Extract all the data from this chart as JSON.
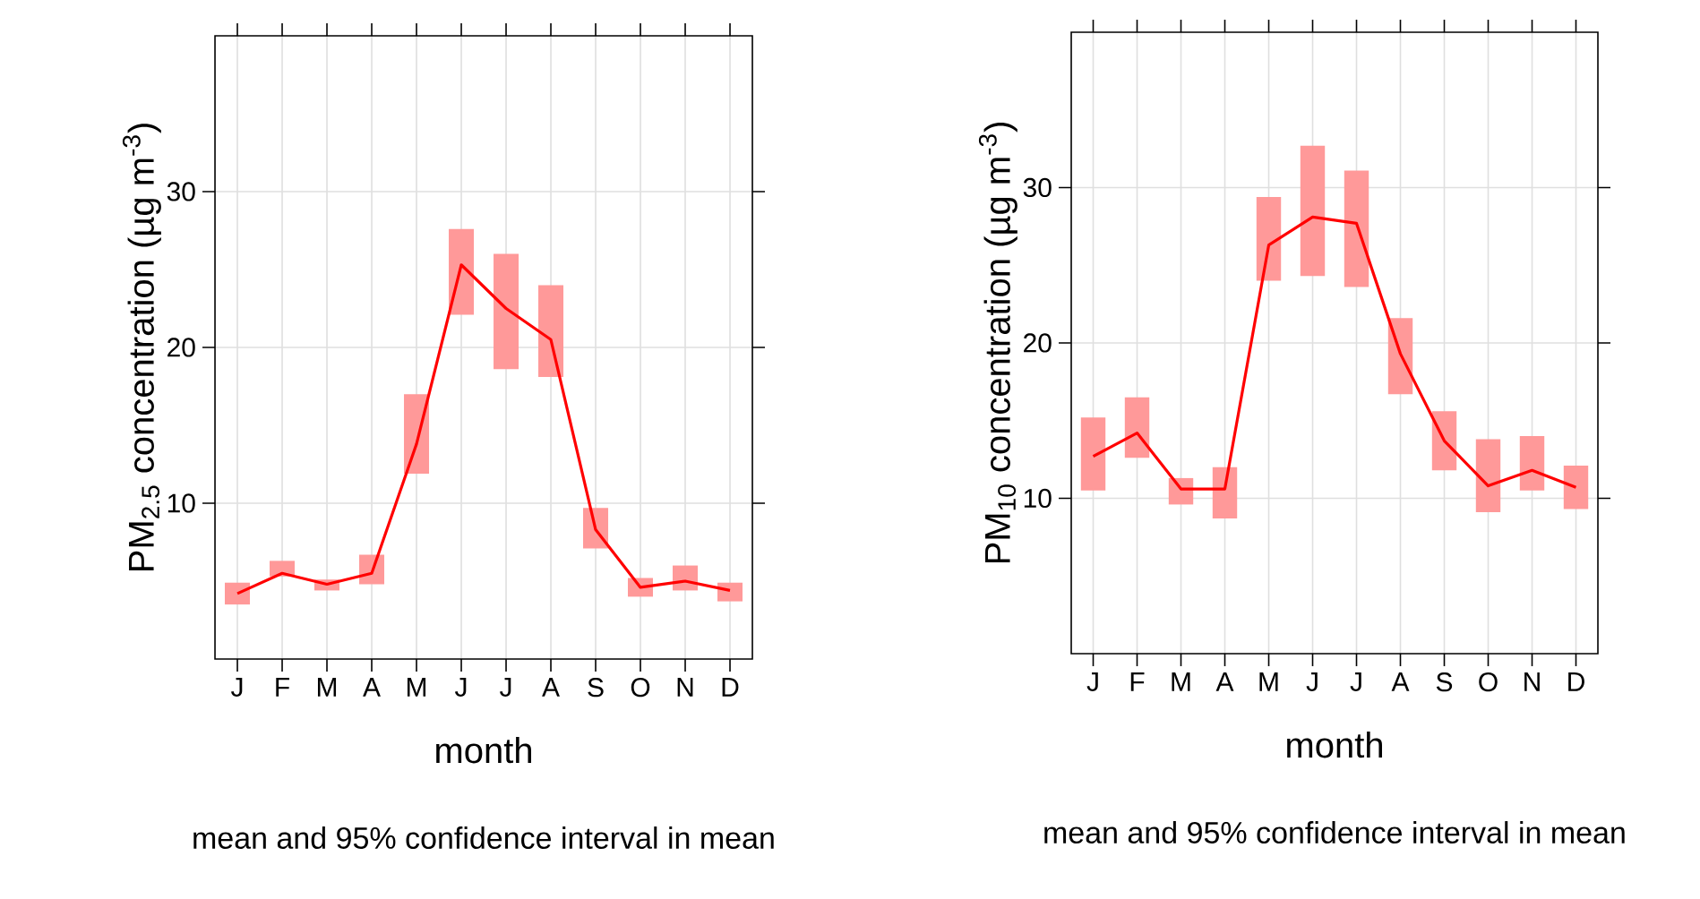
{
  "chart_data": [
    {
      "type": "line",
      "xlabel": "month",
      "ylabel": "PM$_{2.5}$ concentration (µg m$^{-3}$)",
      "categories": [
        "J",
        "F",
        "M",
        "A",
        "M",
        "J",
        "J",
        "A",
        "S",
        "O",
        "N",
        "D"
      ],
      "ylim": [
        0,
        40
      ],
      "yticks": [
        10,
        20,
        30
      ],
      "grid": true,
      "annotations": [
        "mean and 95% confidence interval in mean"
      ],
      "series": [
        {
          "color": "#ff0000",
          "values": [
            4.2,
            5.5,
            4.8,
            5.5,
            13.8,
            25.3,
            22.5,
            20.5,
            8.3,
            4.6,
            5.0,
            4.4
          ],
          "errors": [
            [
              3.5,
              4.9
            ],
            [
              5.3,
              6.3
            ],
            [
              4.4,
              5.1
            ],
            [
              4.8,
              6.7
            ],
            [
              11.9,
              17.0
            ],
            [
              22.1,
              27.6
            ],
            [
              18.6,
              26.0
            ],
            [
              18.1,
              24.0
            ],
            [
              7.1,
              9.7
            ],
            [
              4.0,
              5.2
            ],
            [
              4.4,
              6.0
            ],
            [
              3.7,
              4.9
            ]
          ]
        }
      ]
    },
    {
      "type": "line",
      "xlabel": "month",
      "ylabel": "PM$_{10}$ concentration (µg m$^{-3}$)",
      "categories": [
        "J",
        "F",
        "M",
        "A",
        "M",
        "J",
        "J",
        "A",
        "S",
        "O",
        "N",
        "D"
      ],
      "ylim": [
        0,
        40
      ],
      "yticks": [
        10,
        20,
        30
      ],
      "grid": true,
      "annotations": [
        "mean and 95% confidence interval in mean"
      ],
      "series": [
        {
          "color": "#ff0000",
          "values": [
            12.7,
            14.2,
            10.6,
            10.6,
            26.3,
            28.1,
            27.7,
            19.3,
            13.7,
            10.8,
            11.8,
            10.7
          ],
          "errors": [
            [
              10.5,
              15.2
            ],
            [
              12.6,
              16.5
            ],
            [
              9.6,
              11.3
            ],
            [
              8.7,
              12.0
            ],
            [
              24.0,
              29.4
            ],
            [
              24.3,
              32.7
            ],
            [
              23.6,
              31.1
            ],
            [
              16.7,
              21.6
            ],
            [
              11.8,
              15.6
            ],
            [
              9.1,
              13.8
            ],
            [
              10.5,
              14.0
            ],
            [
              9.3,
              12.1
            ]
          ]
        }
      ]
    }
  ]
}
